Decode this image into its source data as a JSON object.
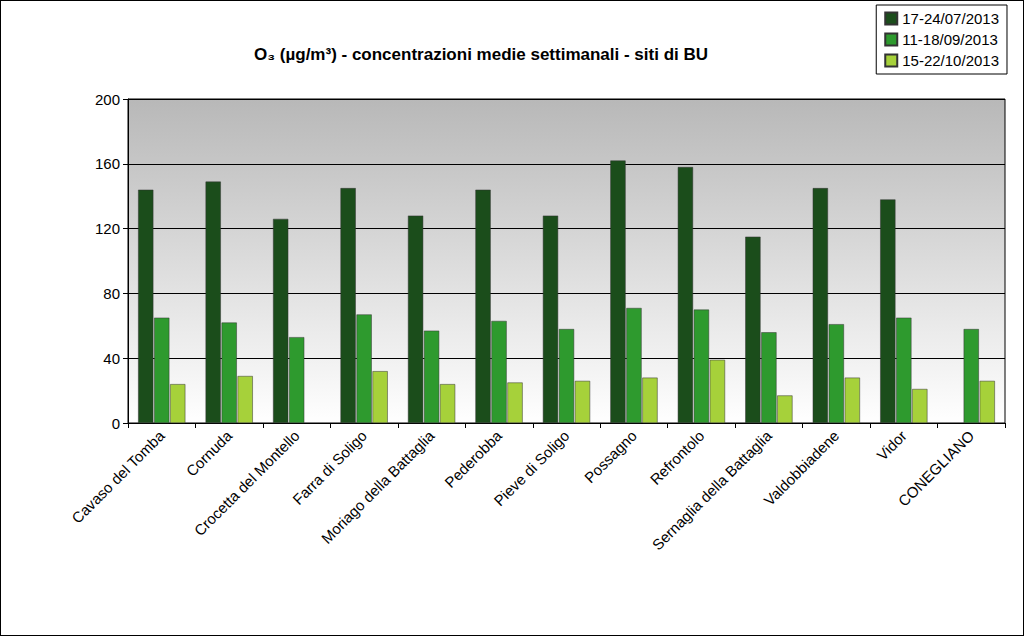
{
  "chart_data": {
    "type": "bar",
    "title": "O₃ (µg/m³) - concentrazioni medie settimanali - siti di BU",
    "categories": [
      "Cavaso del Tomba",
      "Cornuda",
      "Crocetta del Montello",
      "Farra di Soligo",
      "Moriago della Battaglia",
      "Pederobba",
      "Pieve di Soligo",
      "Possagno",
      "Refrontolo",
      "Sernaglia della Battaglia",
      "Valdobbiadene",
      "Vidor",
      "CONEGLIANO"
    ],
    "series": [
      {
        "name": "17-24/07/2013",
        "color": "#1b4d1b",
        "values": [
          144,
          149,
          126,
          145,
          128,
          144,
          128,
          162,
          158,
          115,
          145,
          138,
          null
        ]
      },
      {
        "name": "11-18/09/2013",
        "color": "#2e9a2e",
        "values": [
          65,
          62,
          53,
          67,
          57,
          63,
          58,
          71,
          70,
          56,
          61,
          65,
          58
        ]
      },
      {
        "name": "15-22/10/2013",
        "color": "#a6d13a",
        "values": [
          24,
          29,
          null,
          32,
          24,
          25,
          26,
          28,
          39,
          17,
          28,
          21,
          26
        ]
      }
    ],
    "ylim": [
      0,
      200
    ],
    "yticks": [
      0,
      40,
      80,
      120,
      160,
      200
    ],
    "grid": true,
    "legend": "upper right"
  }
}
